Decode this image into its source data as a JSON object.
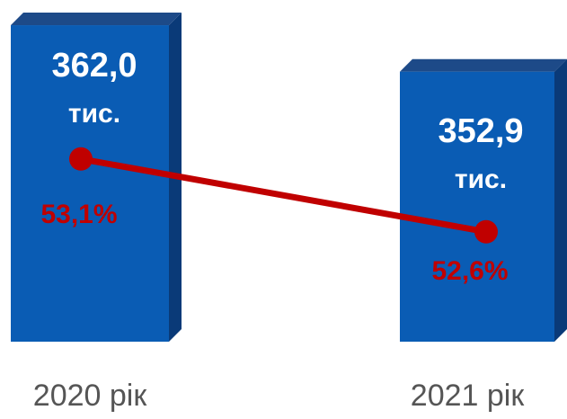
{
  "chart_data": {
    "type": "bar",
    "categories": [
      "2020 рік",
      "2021 рік"
    ],
    "unit": "тис.",
    "ylim": [
      300,
      365
    ],
    "y2lim": [
      52,
      54
    ],
    "series": [
      {
        "type": "bar",
        "color": "#0a5cb4",
        "values": [
          362.0,
          352.9
        ],
        "value_labels": [
          "362,0",
          "352,9"
        ]
      },
      {
        "type": "line",
        "axis": "y2",
        "color": "#c00000",
        "values": [
          53.1,
          52.6
        ],
        "value_labels": [
          "53,1%",
          "52,6%"
        ]
      }
    ]
  }
}
